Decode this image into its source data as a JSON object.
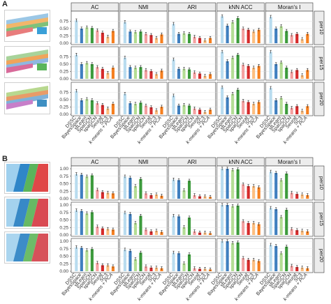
{
  "panels": [
    {
      "letter": "A"
    },
    {
      "letter": "B"
    }
  ],
  "chart_data": [
    {
      "type": "bar",
      "panel": "A",
      "metrics": [
        "AC",
        "NMI",
        "ARI",
        "kNN ACC",
        "Moran's I"
      ],
      "rows": [
        "per10",
        "per15",
        "per20"
      ],
      "methods": [
        "DSSC",
        "BayesSpace",
        "stLearn",
        "SpaGCN",
        "spaGCN",
        "Seurat",
        "SC3",
        "k-means + PCA"
      ],
      "method_colors": [
        "#b9dcef",
        "#3f7fbf",
        "#b3dd94",
        "#3c9b3c",
        "#f4a0a0",
        "#d62a2a",
        "#fdbe7f",
        "#f57f1f"
      ],
      "ylim": [
        0,
        1
      ],
      "yticks": [
        "0.00",
        "0.25",
        "0.50",
        "0.75"
      ],
      "values": [
        [
          [
            0.78,
            0.5,
            0.54,
            0.52,
            0.44,
            0.36,
            0.22,
            0.42
          ],
          [
            0.72,
            0.4,
            0.38,
            0.4,
            0.32,
            0.28,
            0.18,
            0.3
          ],
          [
            0.66,
            0.32,
            0.34,
            0.32,
            0.22,
            0.18,
            0.1,
            0.18
          ],
          [
            0.92,
            0.6,
            0.72,
            0.86,
            0.5,
            0.46,
            0.4,
            0.46
          ],
          [
            0.9,
            0.5,
            0.58,
            0.42,
            0.28,
            0.32,
            0.14,
            0.32
          ]
        ],
        [
          [
            0.82,
            0.5,
            0.54,
            0.5,
            0.4,
            0.34,
            0.2,
            0.38
          ],
          [
            0.72,
            0.4,
            0.38,
            0.4,
            0.3,
            0.26,
            0.16,
            0.28
          ],
          [
            0.66,
            0.34,
            0.34,
            0.32,
            0.22,
            0.18,
            0.1,
            0.16
          ],
          [
            0.92,
            0.6,
            0.72,
            0.82,
            0.48,
            0.44,
            0.38,
            0.44
          ],
          [
            0.92,
            0.5,
            0.56,
            0.38,
            0.24,
            0.3,
            0.12,
            0.3
          ]
        ],
        [
          [
            0.8,
            0.48,
            0.52,
            0.48,
            0.38,
            0.32,
            0.2,
            0.36
          ],
          [
            0.7,
            0.38,
            0.36,
            0.4,
            0.3,
            0.24,
            0.14,
            0.26
          ],
          [
            0.64,
            0.3,
            0.32,
            0.3,
            0.2,
            0.16,
            0.08,
            0.16
          ],
          [
            0.92,
            0.58,
            0.7,
            0.84,
            0.46,
            0.42,
            0.36,
            0.42
          ],
          [
            0.9,
            0.48,
            0.56,
            0.36,
            0.22,
            0.28,
            0.12,
            0.28
          ]
        ]
      ]
    },
    {
      "type": "bar",
      "panel": "B",
      "metrics": [
        "AC",
        "NMI",
        "ARI",
        "kNN ACC",
        "Moran's I"
      ],
      "rows": [
        "per10",
        "per15",
        "per20"
      ],
      "methods": [
        "DSSC",
        "BayesSpace",
        "stLearn",
        "SpaGCN",
        "spaGCN",
        "Seurat",
        "SC3",
        "k-means + PCA"
      ],
      "method_colors": [
        "#b9dcef",
        "#3f7fbf",
        "#b3dd94",
        "#3c9b3c",
        "#f4a0a0",
        "#d62a2a",
        "#fdbe7f",
        "#f57f1f"
      ],
      "ylim": [
        0,
        1
      ],
      "yticks": [
        "0.00",
        "0.25",
        "0.50",
        "0.75",
        "1.00"
      ],
      "values": [
        [
          [
            0.82,
            0.8,
            0.74,
            0.78,
            0.3,
            0.22,
            0.2,
            0.18
          ],
          [
            0.74,
            0.7,
            0.42,
            0.66,
            0.18,
            0.12,
            0.14,
            0.1
          ],
          [
            0.64,
            0.62,
            0.28,
            0.6,
            0.12,
            0.08,
            0.08,
            0.06
          ],
          [
            1.0,
            1.0,
            0.96,
            0.98,
            0.48,
            0.42,
            0.42,
            0.38
          ],
          [
            0.9,
            0.86,
            0.62,
            0.84,
            0.2,
            0.16,
            0.14,
            0.12
          ]
        ],
        [
          [
            0.82,
            0.8,
            0.72,
            0.76,
            0.28,
            0.22,
            0.2,
            0.18
          ],
          [
            0.74,
            0.7,
            0.4,
            0.64,
            0.18,
            0.12,
            0.14,
            0.1
          ],
          [
            0.64,
            0.62,
            0.26,
            0.58,
            0.12,
            0.08,
            0.08,
            0.06
          ],
          [
            1.0,
            1.0,
            0.96,
            0.98,
            0.46,
            0.4,
            0.4,
            0.36
          ],
          [
            0.9,
            0.86,
            0.6,
            0.84,
            0.2,
            0.16,
            0.14,
            0.12
          ]
        ],
        [
          [
            0.8,
            0.78,
            0.7,
            0.74,
            0.28,
            0.2,
            0.2,
            0.16
          ],
          [
            0.72,
            0.68,
            0.4,
            0.62,
            0.16,
            0.12,
            0.12,
            0.1
          ],
          [
            0.62,
            0.6,
            0.26,
            0.56,
            0.1,
            0.08,
            0.08,
            0.06
          ],
          [
            1.0,
            1.0,
            0.94,
            0.96,
            0.44,
            0.38,
            0.38,
            0.34
          ],
          [
            0.88,
            0.84,
            0.6,
            0.82,
            0.18,
            0.14,
            0.12,
            0.1
          ]
        ]
      ]
    }
  ]
}
